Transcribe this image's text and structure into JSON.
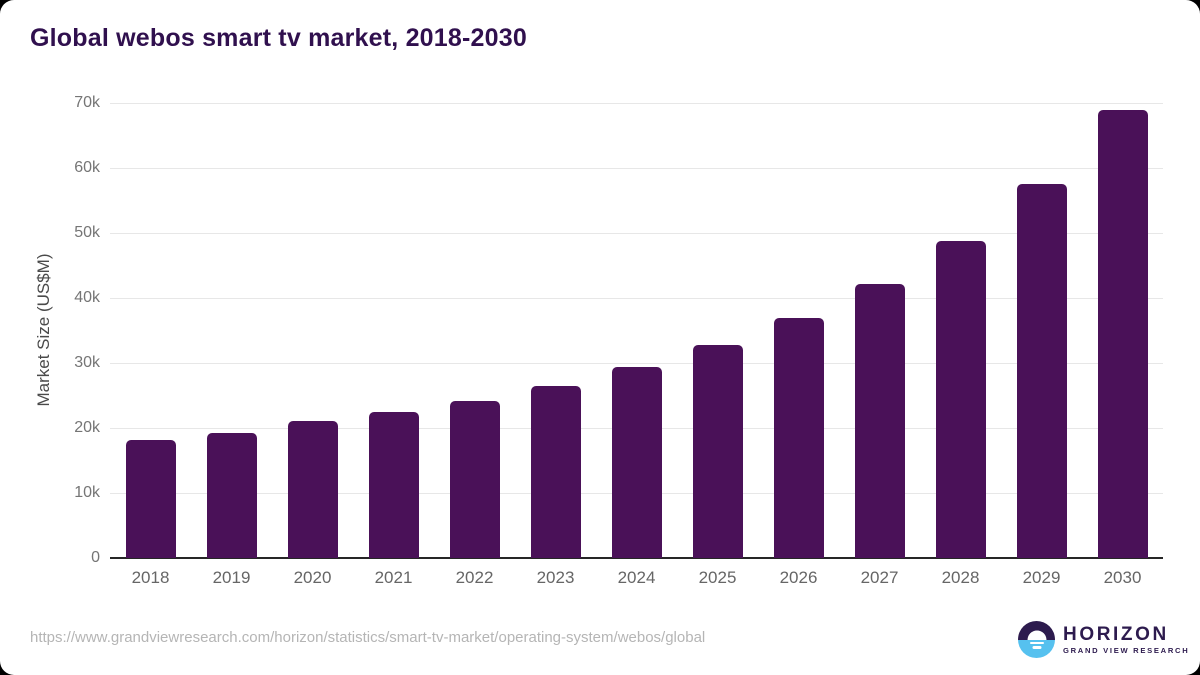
{
  "title": "Global webos smart tv market, 2018-2030",
  "footer": {
    "source_url": "https://www.grandviewresearch.com/horizon/statistics/smart-tv-market/operating-system/webos/global",
    "logo": {
      "name": "HORIZON",
      "subtitle": "GRAND VIEW RESEARCH"
    }
  },
  "colors": {
    "bar": "#4a1158",
    "title_text": "#30104e",
    "gridline": "#e7e7e7",
    "axis_line": "#262626",
    "tick_text": "#757575",
    "logo_purple": "#2d1b4e",
    "logo_blue": "#56c1ef"
  },
  "chart_data": {
    "type": "bar",
    "title": "Global webos smart tv market, 2018-2030",
    "xlabel": "",
    "ylabel": "Market Size (US$M)",
    "categories": [
      "2018",
      "2019",
      "2020",
      "2021",
      "2022",
      "2023",
      "2024",
      "2025",
      "2026",
      "2027",
      "2028",
      "2029",
      "2030"
    ],
    "values": [
      18200,
      19300,
      21100,
      22500,
      24200,
      26400,
      29400,
      32800,
      36900,
      42200,
      48700,
      57500,
      69000
    ],
    "ylim": [
      0,
      70000
    ],
    "ytick_values": [
      0,
      10000,
      20000,
      30000,
      40000,
      50000,
      60000,
      70000
    ],
    "ytick_labels": [
      "0",
      "10k",
      "20k",
      "30k",
      "40k",
      "50k",
      "60k",
      "70k"
    ],
    "grid": "horizontal",
    "legend": "none",
    "bar_color": "#4a1158"
  }
}
